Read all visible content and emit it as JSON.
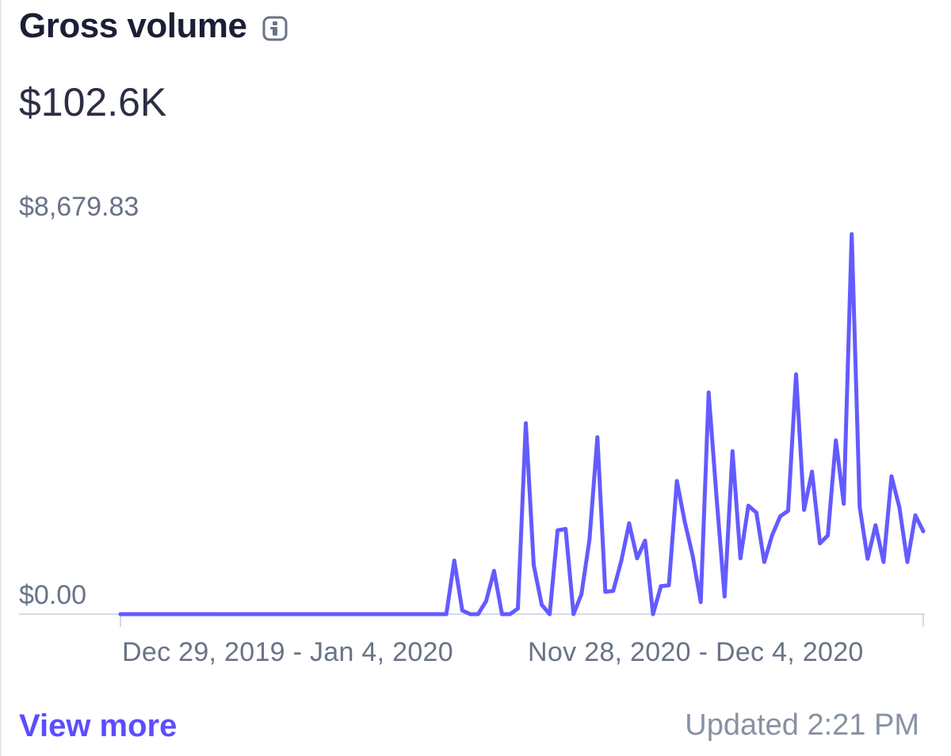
{
  "header": {
    "title": "Gross volume",
    "info_icon": "info-icon",
    "total": "$102.6K"
  },
  "colors": {
    "line": "#635bff",
    "link": "#5c4dff",
    "muted": "#697386",
    "axis": "#d6dae2"
  },
  "footer": {
    "view_more": "View more",
    "updated": "Updated 2:21 PM"
  },
  "chart_data": {
    "type": "line",
    "title": "Gross volume",
    "y_tick_labels": [
      "$8,679.83",
      "$0.00"
    ],
    "ylim": [
      0,
      8679.83
    ],
    "x_tick_labels": [
      "Dec 29, 2019 - Jan 4, 2020",
      "Nov 28, 2020 - Dec 4, 2020"
    ],
    "grid": false,
    "series": [
      {
        "values": [
          0,
          0,
          0,
          0,
          0,
          0,
          0,
          0,
          0,
          0,
          0,
          0,
          0,
          0,
          0,
          0,
          0,
          0,
          0,
          0,
          0,
          0,
          0,
          0,
          0,
          0,
          0,
          0,
          0,
          0,
          0,
          0,
          0,
          0,
          0,
          0,
          0,
          0,
          0,
          0,
          0,
          0,
          1150,
          80,
          0,
          0,
          280,
          930,
          0,
          0,
          120,
          4100,
          1050,
          200,
          0,
          1800,
          1830,
          0,
          430,
          1600,
          3800,
          480,
          500,
          1140,
          1950,
          1200,
          1580,
          0,
          600,
          620,
          2860,
          1980,
          1250,
          260,
          4760,
          2500,
          380,
          3500,
          1200,
          2330,
          2180,
          1120,
          1700,
          2100,
          2220,
          5150,
          2240,
          3060,
          1520,
          1690,
          3730,
          2370,
          8160,
          2300,
          1190,
          1910,
          1120,
          2960,
          2290,
          1120,
          2120,
          1780
        ]
      }
    ]
  }
}
